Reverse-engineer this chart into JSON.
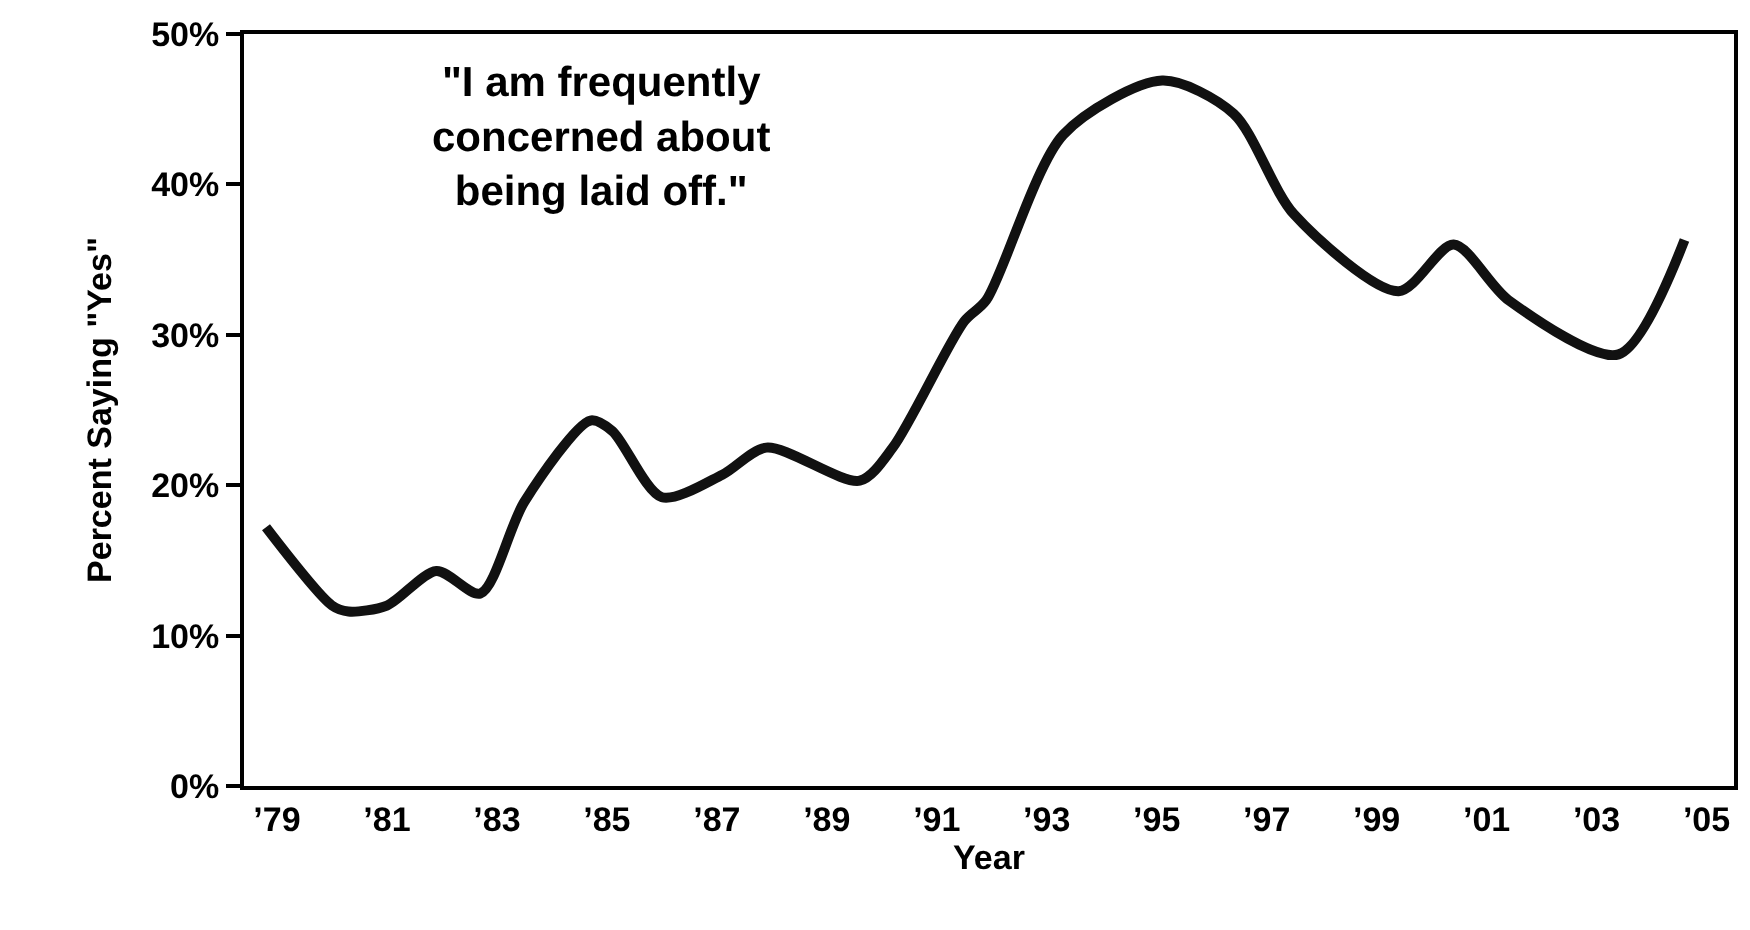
{
  "chart_data": {
    "type": "line",
    "xlabel": "Year",
    "ylabel": "Percent Saying \"Yes\"",
    "annotations": [
      "\"I am frequently\nconcerned about\nbeing laid off.\""
    ],
    "x": [
      1978.8,
      1980.0,
      1980.3,
      1981.0,
      1981.9,
      1982.7,
      1983.5,
      1984.7,
      1985.1,
      1986.0,
      1987.1,
      1987.9,
      1989.6,
      1990.2,
      1991.5,
      1991.9,
      1993.3,
      1995.1,
      1996.4,
      1997.5,
      1999.4,
      2000.4,
      2001.4,
      2003.4,
      2004.6
    ],
    "series": [
      {
        "color": "#111111",
        "values": [
          17.2,
          12,
          11.6,
          12,
          14.3,
          12.8,
          18.9,
          24.3,
          23.6,
          19.2,
          20.7,
          22.5,
          20.3,
          22.5,
          30.9,
          32.3,
          43.3,
          46.9,
          44.7,
          38,
          32.9,
          36,
          32.3,
          28.7,
          36.3
        ]
      }
    ],
    "xlim": [
      1978.4,
      2005.5
    ],
    "xticks": [
      {
        "value": 1979,
        "label": "’79"
      },
      {
        "value": 1981,
        "label": "’81"
      },
      {
        "value": 1983,
        "label": "’83"
      },
      {
        "value": 1985,
        "label": "’85"
      },
      {
        "value": 1987,
        "label": "’87"
      },
      {
        "value": 1989,
        "label": "’89"
      },
      {
        "value": 1991,
        "label": "’91"
      },
      {
        "value": 1993,
        "label": "’93"
      },
      {
        "value": 1995,
        "label": "’95"
      },
      {
        "value": 1997,
        "label": "’97"
      },
      {
        "value": 1999,
        "label": "’99"
      },
      {
        "value": 2001,
        "label": "’01"
      },
      {
        "value": 2003,
        "label": "’03"
      },
      {
        "value": 2005,
        "label": "’05"
      }
    ],
    "ylim": [
      0,
      50
    ],
    "yticks": [
      {
        "value": 0,
        "label": "0%"
      },
      {
        "value": 10,
        "label": "10%"
      },
      {
        "value": 20,
        "label": "20%"
      },
      {
        "value": 30,
        "label": "30%"
      },
      {
        "value": 40,
        "label": "40%"
      },
      {
        "value": 50,
        "label": "50%"
      }
    ],
    "marker": "none",
    "line_style": "solid"
  }
}
